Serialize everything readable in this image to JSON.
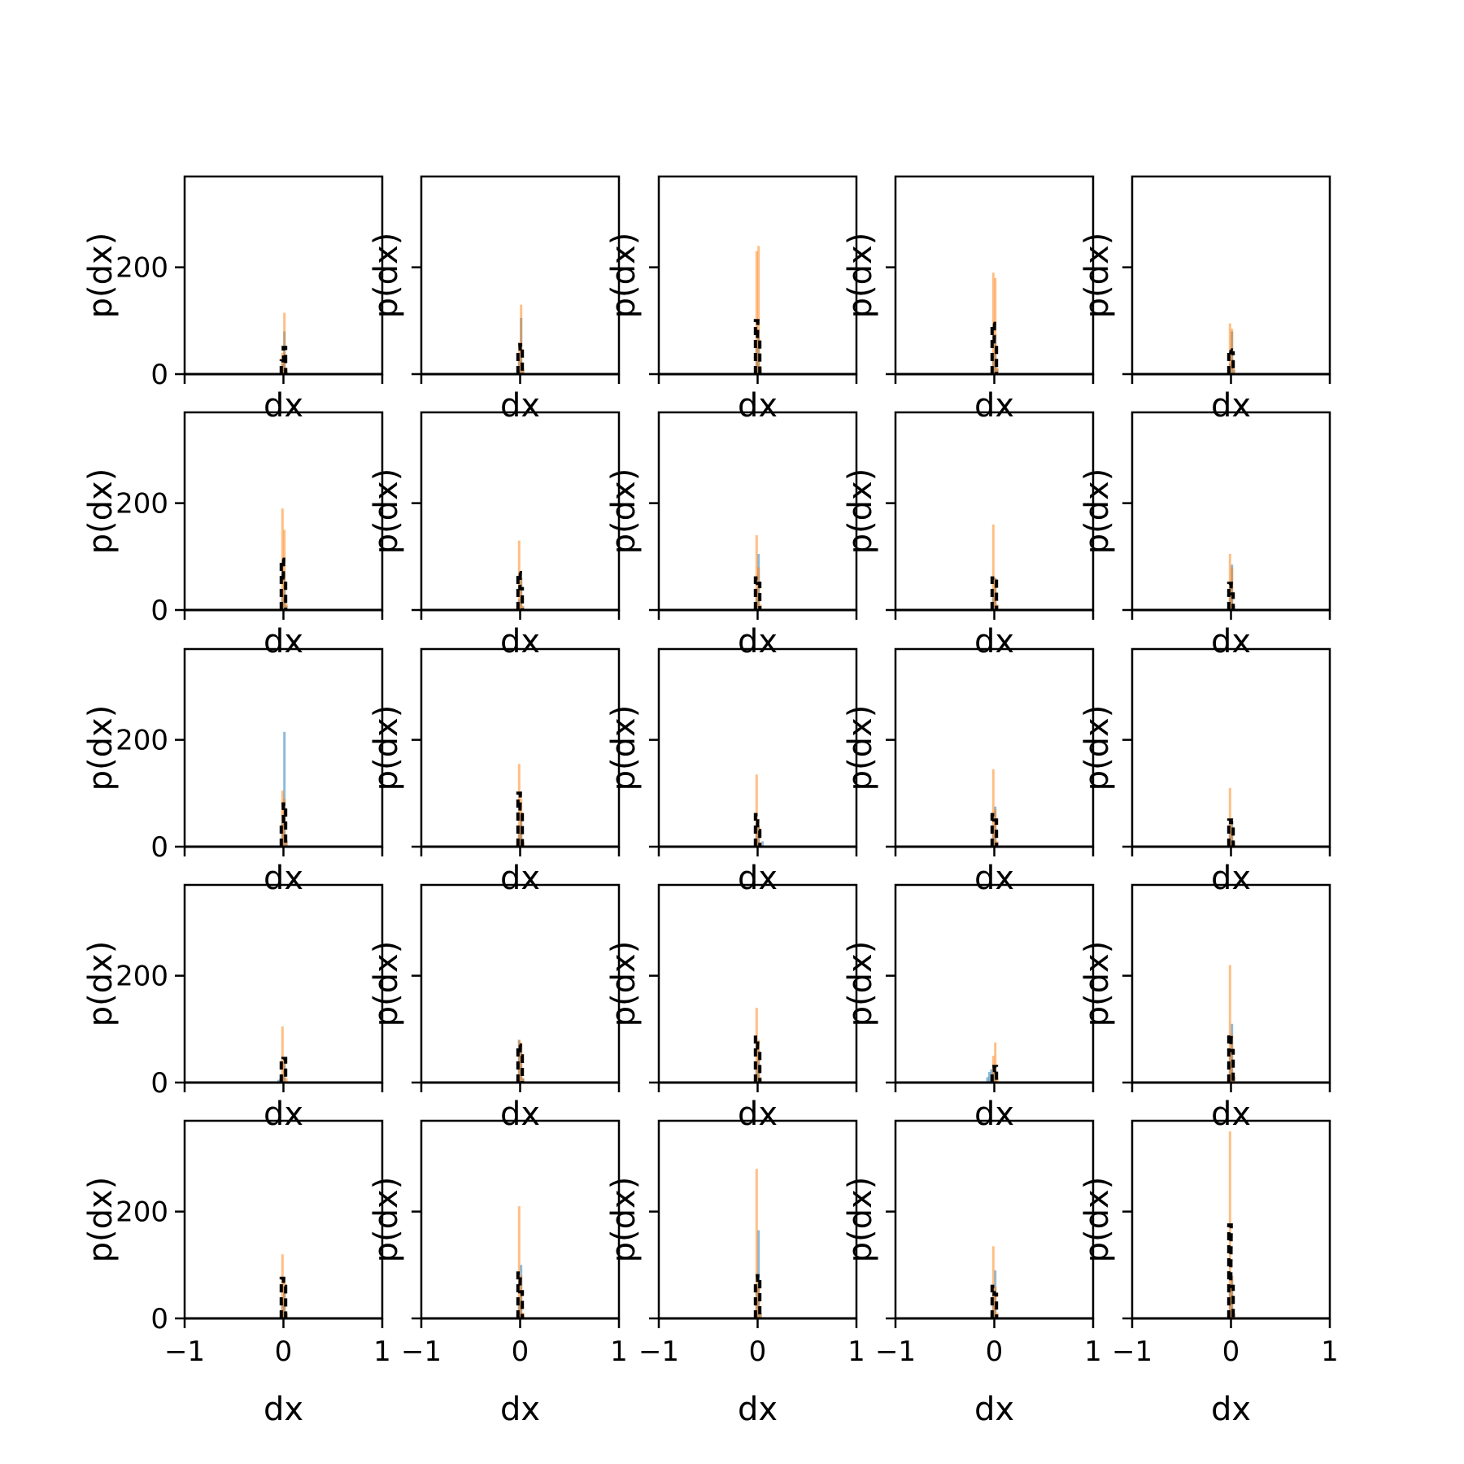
{
  "chart_data": {
    "type": "histogram-grid",
    "rows": 5,
    "cols": 5,
    "xlabel": "dx",
    "ylabel": "p(dx)",
    "xlim": [
      -1,
      1
    ],
    "ylim": [
      0,
      370
    ],
    "xticks": [
      {
        "value": -1,
        "label": "−1"
      },
      {
        "value": 0,
        "label": "0"
      },
      {
        "value": 1,
        "label": "1"
      }
    ],
    "yticks": [
      {
        "value": 0,
        "label": "0"
      },
      {
        "value": 200,
        "label": "200"
      }
    ],
    "grid": false,
    "colors": {
      "series_a": "#1f77b4",
      "series_b": "#ff7f0e",
      "series_c": "#000000"
    },
    "bin_width": 0.02,
    "panels": [
      {
        "a": [
          [
            -0.01,
            20
          ],
          [
            0.01,
            80
          ],
          [
            0.03,
            5
          ]
        ],
        "b": [
          [
            -0.01,
            40
          ],
          [
            0.01,
            115
          ],
          [
            0.03,
            10
          ]
        ],
        "c": [
          [
            -0.01,
            25
          ],
          [
            0.01,
            50
          ]
        ]
      },
      {
        "a": [
          [
            -0.01,
            30
          ],
          [
            0.01,
            105
          ],
          [
            0.03,
            8
          ]
        ],
        "b": [
          [
            -0.01,
            60
          ],
          [
            0.01,
            130
          ],
          [
            0.03,
            10
          ]
        ],
        "c": [
          [
            -0.01,
            40
          ],
          [
            0.01,
            55
          ]
        ]
      },
      {
        "a": [
          [
            -0.01,
            50
          ],
          [
            0.01,
            70
          ],
          [
            0.03,
            10
          ]
        ],
        "b": [
          [
            -0.01,
            230
          ],
          [
            0.01,
            240
          ],
          [
            0.03,
            15
          ]
        ],
        "c": [
          [
            -0.01,
            100
          ],
          [
            0.01,
            60
          ]
        ]
      },
      {
        "a": [
          [
            -0.01,
            40
          ],
          [
            0.01,
            75
          ],
          [
            0.03,
            10
          ]
        ],
        "b": [
          [
            -0.01,
            190
          ],
          [
            0.01,
            180
          ],
          [
            0.03,
            12
          ]
        ],
        "c": [
          [
            -0.01,
            95
          ],
          [
            0.01,
            55
          ]
        ]
      },
      {
        "a": [
          [
            -0.01,
            20
          ],
          [
            0.01,
            80
          ],
          [
            0.03,
            8
          ]
        ],
        "b": [
          [
            -0.01,
            95
          ],
          [
            0.01,
            85
          ],
          [
            0.03,
            10
          ]
        ],
        "c": [
          [
            -0.01,
            45
          ],
          [
            0.01,
            40
          ]
        ]
      },
      {
        "a": [
          [
            -0.01,
            30
          ],
          [
            0.01,
            70
          ],
          [
            0.03,
            8
          ]
        ],
        "b": [
          [
            -0.01,
            190
          ],
          [
            0.01,
            150
          ],
          [
            0.03,
            12
          ]
        ],
        "c": [
          [
            -0.01,
            95
          ],
          [
            0.01,
            60
          ]
        ]
      },
      {
        "a": [
          [
            -0.01,
            20
          ],
          [
            0.01,
            60
          ],
          [
            0.03,
            6
          ]
        ],
        "b": [
          [
            -0.01,
            130
          ],
          [
            0.01,
            60
          ],
          [
            0.03,
            8
          ]
        ],
        "c": [
          [
            -0.01,
            70
          ],
          [
            0.01,
            40
          ]
        ]
      },
      {
        "a": [
          [
            -0.01,
            40
          ],
          [
            0.01,
            105
          ],
          [
            0.03,
            8
          ]
        ],
        "b": [
          [
            -0.01,
            140
          ],
          [
            0.01,
            80
          ],
          [
            0.03,
            10
          ]
        ],
        "c": [
          [
            -0.01,
            60
          ],
          [
            0.01,
            50
          ]
        ]
      },
      {
        "a": [
          [
            -0.01,
            30
          ],
          [
            0.01,
            60
          ],
          [
            0.03,
            8
          ]
        ],
        "b": [
          [
            -0.01,
            160
          ],
          [
            0.01,
            60
          ],
          [
            0.03,
            10
          ]
        ],
        "c": [
          [
            -0.01,
            60
          ],
          [
            0.01,
            60
          ]
        ]
      },
      {
        "a": [
          [
            -0.01,
            40
          ],
          [
            0.01,
            85
          ],
          [
            0.03,
            8
          ]
        ],
        "b": [
          [
            -0.01,
            105
          ],
          [
            0.01,
            80
          ],
          [
            0.03,
            10
          ]
        ],
        "c": [
          [
            -0.01,
            50
          ],
          [
            0.01,
            30
          ]
        ]
      },
      {
        "a": [
          [
            -0.01,
            60
          ],
          [
            0.01,
            215
          ],
          [
            0.03,
            10
          ]
        ],
        "b": [
          [
            -0.01,
            105
          ],
          [
            0.01,
            90
          ],
          [
            0.03,
            12
          ]
        ],
        "c": [
          [
            -0.01,
            40
          ],
          [
            0.01,
            80
          ]
        ]
      },
      {
        "a": [
          [
            -0.01,
            40
          ],
          [
            0.01,
            60
          ],
          [
            0.03,
            8
          ]
        ],
        "b": [
          [
            -0.01,
            155
          ],
          [
            0.01,
            90
          ],
          [
            0.03,
            10
          ]
        ],
        "c": [
          [
            -0.01,
            100
          ],
          [
            0.01,
            60
          ]
        ]
      },
      {
        "a": [
          [
            -0.01,
            40
          ],
          [
            0.01,
            40
          ],
          [
            0.05,
            10
          ]
        ],
        "b": [
          [
            -0.01,
            135
          ],
          [
            0.01,
            40
          ],
          [
            0.03,
            8
          ]
        ],
        "c": [
          [
            -0.01,
            60
          ],
          [
            0.01,
            30
          ]
        ]
      },
      {
        "a": [
          [
            -0.01,
            40
          ],
          [
            0.01,
            75
          ],
          [
            0.03,
            8
          ]
        ],
        "b": [
          [
            -0.01,
            145
          ],
          [
            0.01,
            70
          ],
          [
            0.03,
            10
          ]
        ],
        "c": [
          [
            -0.01,
            60
          ],
          [
            0.01,
            50
          ]
        ]
      },
      {
        "a": [
          [
            -0.01,
            30
          ],
          [
            0.01,
            50
          ],
          [
            0.03,
            6
          ]
        ],
        "b": [
          [
            -0.01,
            110
          ],
          [
            0.01,
            40
          ],
          [
            0.03,
            8
          ]
        ],
        "c": [
          [
            -0.01,
            50
          ],
          [
            0.01,
            45
          ]
        ]
      },
      {
        "a": [
          [
            -0.05,
            5
          ],
          [
            -0.03,
            8
          ],
          [
            -0.01,
            15
          ],
          [
            0.01,
            40
          ]
        ],
        "b": [
          [
            -0.01,
            105
          ],
          [
            0.01,
            45
          ],
          [
            0.03,
            8
          ]
        ],
        "c": [
          [
            -0.01,
            40
          ],
          [
            0.01,
            45
          ]
        ]
      },
      {
        "a": [
          [
            -0.01,
            80
          ],
          [
            0.01,
            70
          ],
          [
            0.03,
            8
          ]
        ],
        "b": [
          [
            -0.01,
            80
          ],
          [
            0.01,
            75
          ],
          [
            0.03,
            8
          ]
        ],
        "c": [
          [
            -0.01,
            70
          ],
          [
            0.01,
            50
          ]
        ]
      },
      {
        "a": [
          [
            -0.01,
            40
          ],
          [
            0.01,
            60
          ],
          [
            0.03,
            8
          ]
        ],
        "b": [
          [
            -0.01,
            140
          ],
          [
            0.01,
            80
          ],
          [
            0.03,
            10
          ]
        ],
        "c": [
          [
            -0.01,
            85
          ],
          [
            0.01,
            60
          ]
        ]
      },
      {
        "a": [
          [
            -0.07,
            10
          ],
          [
            -0.05,
            20
          ],
          [
            -0.03,
            25
          ],
          [
            -0.01,
            25
          ],
          [
            0.01,
            25
          ]
        ],
        "b": [
          [
            -0.01,
            50
          ],
          [
            0.01,
            75
          ],
          [
            0.03,
            8
          ]
        ],
        "c": [
          [
            -0.01,
            20
          ],
          [
            0.01,
            30
          ]
        ]
      },
      {
        "a": [
          [
            -0.01,
            50
          ],
          [
            0.01,
            110
          ],
          [
            0.03,
            10
          ]
        ],
        "b": [
          [
            -0.01,
            220
          ],
          [
            0.01,
            90
          ],
          [
            0.03,
            12
          ]
        ],
        "c": [
          [
            -0.01,
            90
          ],
          [
            0.01,
            60
          ]
        ]
      },
      {
        "a": [
          [
            -0.01,
            30
          ],
          [
            0.01,
            60
          ],
          [
            0.03,
            8
          ]
        ],
        "b": [
          [
            -0.01,
            120
          ],
          [
            0.01,
            75
          ],
          [
            0.03,
            10
          ]
        ],
        "c": [
          [
            -0.01,
            75
          ],
          [
            0.01,
            60
          ]
        ]
      },
      {
        "a": [
          [
            -0.01,
            40
          ],
          [
            0.01,
            100
          ],
          [
            0.03,
            8
          ]
        ],
        "b": [
          [
            -0.01,
            210
          ],
          [
            0.01,
            80
          ],
          [
            0.03,
            10
          ]
        ],
        "c": [
          [
            -0.01,
            85
          ],
          [
            0.01,
            50
          ]
        ]
      },
      {
        "a": [
          [
            -0.01,
            60
          ],
          [
            0.01,
            165
          ],
          [
            0.03,
            10
          ]
        ],
        "b": [
          [
            -0.01,
            280
          ],
          [
            0.01,
            60
          ],
          [
            0.03,
            10
          ]
        ],
        "c": [
          [
            -0.01,
            65
          ],
          [
            0.01,
            80
          ]
        ]
      },
      {
        "a": [
          [
            -0.01,
            40
          ],
          [
            0.01,
            90
          ],
          [
            0.03,
            8
          ]
        ],
        "b": [
          [
            -0.01,
            135
          ],
          [
            0.01,
            60
          ],
          [
            0.03,
            10
          ]
        ],
        "c": [
          [
            -0.01,
            60
          ],
          [
            0.01,
            45
          ]
        ]
      },
      {
        "a": [
          [
            -0.01,
            60
          ],
          [
            0.01,
            80
          ],
          [
            0.03,
            8
          ]
        ],
        "b": [
          [
            -0.01,
            350
          ],
          [
            0.01,
            80
          ],
          [
            0.03,
            10
          ]
        ],
        "c": [
          [
            -0.01,
            175
          ],
          [
            0.01,
            60
          ]
        ]
      }
    ]
  }
}
